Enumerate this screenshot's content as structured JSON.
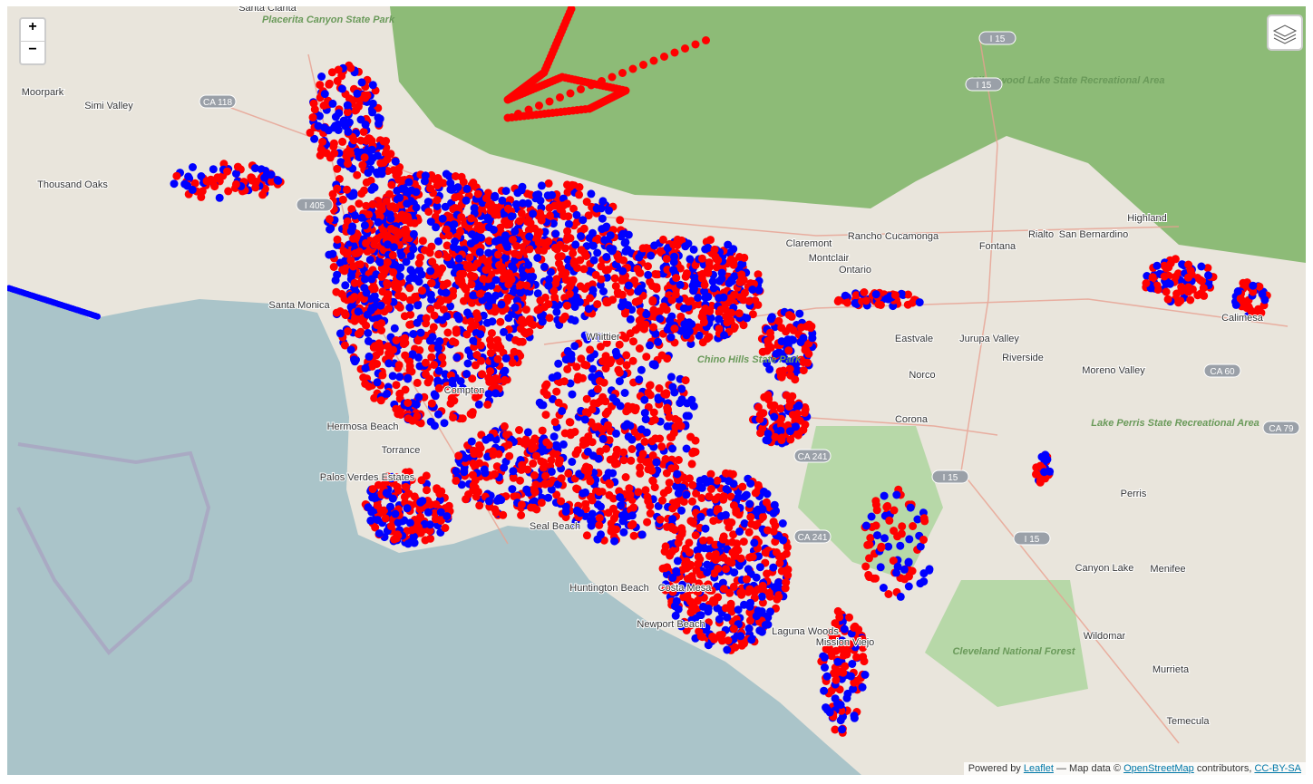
{
  "zoom_control": {
    "zoom_in": "+",
    "zoom_out": "−"
  },
  "attribution": {
    "prefix": "Powered by",
    "leaflet": "Leaflet",
    "map_data": "— Map data ©",
    "osm": "OpenStreetMap",
    "contributors": "contributors,",
    "license": "CC-BY-SA"
  },
  "places": [
    "Santa Clarita",
    "Simi Valley",
    "Moorpark",
    "Thousand Oaks",
    "Santa Monica",
    "Torrance",
    "Compton",
    "Whittier",
    "Hermosa Beach",
    "Palos Verdes Estates",
    "Seal Beach",
    "Huntington Beach",
    "Costa Mesa",
    "Newport Beach",
    "Claremont",
    "Montclair",
    "Ontario",
    "Rancho Cucamonga",
    "Fontana",
    "Rialto",
    "San Bernardino",
    "Highland",
    "Eastvale",
    "Jurupa Valley",
    "Riverside",
    "Norco",
    "Corona",
    "Moreno Valley",
    "Calimesa",
    "Perris",
    "Canyon Lake",
    "Menifee",
    "Wildomar",
    "Murrieta",
    "Temecula",
    "Mission Viejo",
    "Laguna Woods"
  ],
  "parks": [
    "Chino Hills State Park",
    "Cleveland National Forest",
    "Lake Perris State Recreational Area",
    "Silverwood Lake State Recreational Area",
    "Placerita Canyon State Park"
  ],
  "roads": [
    "CA 118",
    "I 405",
    "I 15",
    "I 15",
    "CA 60",
    "CA 241",
    "CA 241",
    "I 15",
    "I 15",
    "CA 79"
  ]
}
